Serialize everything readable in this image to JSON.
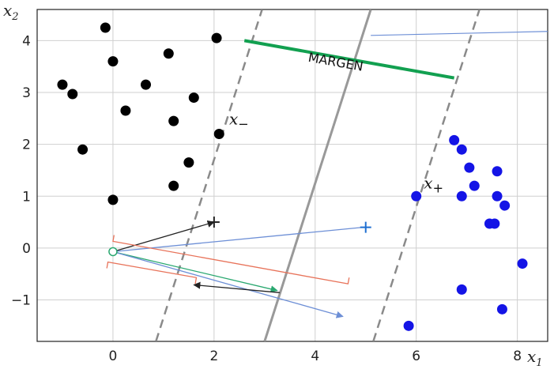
{
  "chart_data": {
    "type": "scatter",
    "title": "",
    "xlabel": {
      "base": "x",
      "sub": "1"
    },
    "ylabel": {
      "base": "x",
      "sub": "2"
    },
    "xlim": [
      -1.5,
      8.6
    ],
    "ylim": [
      -1.8,
      4.6
    ],
    "x_ticks": [
      0,
      2,
      4,
      6,
      8
    ],
    "y_ticks": [
      -1,
      0,
      1,
      2,
      3,
      4
    ],
    "grid": true,
    "colors": {
      "class_negative": "#000000",
      "class_positive": "#1414e6",
      "margin_bar": "#12a050",
      "hyperplane": "#999999",
      "margin_planes": "#8a8a8a",
      "w_vector": "#6d8fd6",
      "bracket": "#e8735a",
      "green_vector": "#2aa870",
      "black_vector": "#222222",
      "origin_marker": "#2aa870",
      "plus_blue": "#1f6fd1"
    },
    "series": [
      {
        "class": "negative",
        "points": [
          [
            -0.15,
            4.25
          ],
          [
            2.05,
            4.05
          ],
          [
            0.0,
            3.6
          ],
          [
            1.1,
            3.75
          ],
          [
            -1.0,
            3.15
          ],
          [
            -0.8,
            2.97
          ],
          [
            0.65,
            3.15
          ],
          [
            1.6,
            2.9
          ],
          [
            0.25,
            2.65
          ],
          [
            1.2,
            2.45
          ],
          [
            2.1,
            2.2
          ],
          [
            -0.6,
            1.9
          ],
          [
            1.5,
            1.65
          ],
          [
            1.2,
            1.2
          ],
          [
            0.0,
            0.93
          ]
        ]
      },
      {
        "class": "positive",
        "points": [
          [
            6.75,
            2.08
          ],
          [
            6.9,
            1.9
          ],
          [
            7.05,
            1.55
          ],
          [
            7.6,
            1.48
          ],
          [
            7.15,
            1.2
          ],
          [
            6.0,
            1.0
          ],
          [
            6.9,
            1.0
          ],
          [
            7.6,
            1.0
          ],
          [
            7.75,
            0.82
          ],
          [
            7.45,
            0.47
          ],
          [
            7.55,
            0.47
          ],
          [
            8.1,
            -0.3
          ],
          [
            6.9,
            -0.8
          ],
          [
            7.7,
            -1.18
          ],
          [
            5.85,
            -1.5
          ]
        ]
      }
    ],
    "hyperplane": [
      [
        3.0,
        -1.8
      ],
      [
        5.1,
        4.6
      ]
    ],
    "margin_planes": [
      [
        [
          0.85,
          -1.8
        ],
        [
          2.95,
          4.6
        ]
      ],
      [
        [
          5.15,
          -1.8
        ],
        [
          7.25,
          4.6
        ]
      ]
    ],
    "margin_bar": [
      [
        2.6,
        4.0
      ],
      [
        6.75,
        3.28
      ]
    ],
    "origin": [
      0.0,
      -0.07
    ],
    "annotations": [
      {
        "name": "x-minus-label",
        "base": "x",
        "sub": "−",
        "at": [
          2.3,
          2.38
        ]
      },
      {
        "name": "x-plus-label",
        "base": "x",
        "sub": "+",
        "at": [
          6.15,
          1.15
        ]
      },
      {
        "name": "margin-label",
        "text": "MARGEN",
        "at": [
          3.85,
          3.6
        ],
        "angle": 10
      }
    ],
    "markers": [
      {
        "name": "plus-marker-black",
        "at": [
          2.0,
          0.5
        ]
      },
      {
        "name": "plus-marker-blue",
        "at": [
          5.0,
          0.4
        ]
      }
    ],
    "arrows": [
      {
        "name": "arrow-to-plus-black",
        "from": [
          0.0,
          -0.07
        ],
        "to": [
          2.0,
          0.5
        ],
        "head": "end"
      },
      {
        "name": "arrow-to-plus-blue",
        "from": [
          0.0,
          -0.07
        ],
        "to": [
          4.95,
          0.4
        ],
        "head": "none"
      },
      {
        "name": "green-projection-vector",
        "from": [
          0.0,
          -0.07
        ],
        "to": [
          3.25,
          -0.82
        ],
        "head": "end"
      },
      {
        "name": "blue-w-vector",
        "from": [
          0.0,
          -0.07
        ],
        "to": [
          4.55,
          -1.32
        ],
        "head": "end"
      },
      {
        "name": "black-back-arrow",
        "from": [
          3.3,
          -0.86
        ],
        "to": [
          1.6,
          -0.71
        ],
        "head": "end"
      },
      {
        "name": "w-line-topright",
        "from": [
          5.1,
          4.1
        ],
        "to": [
          8.75,
          4.18
        ],
        "head": "none"
      }
    ],
    "brackets": [
      {
        "name": "upper-bracket",
        "points": [
          [
            0.0,
            0.13
          ],
          [
            4.65,
            -0.69
          ]
        ],
        "tick_dir": -1
      },
      {
        "name": "lower-bracket",
        "points": [
          [
            -0.1,
            -0.27
          ],
          [
            1.65,
            -0.57
          ]
        ],
        "tick_dir": 1
      }
    ]
  }
}
